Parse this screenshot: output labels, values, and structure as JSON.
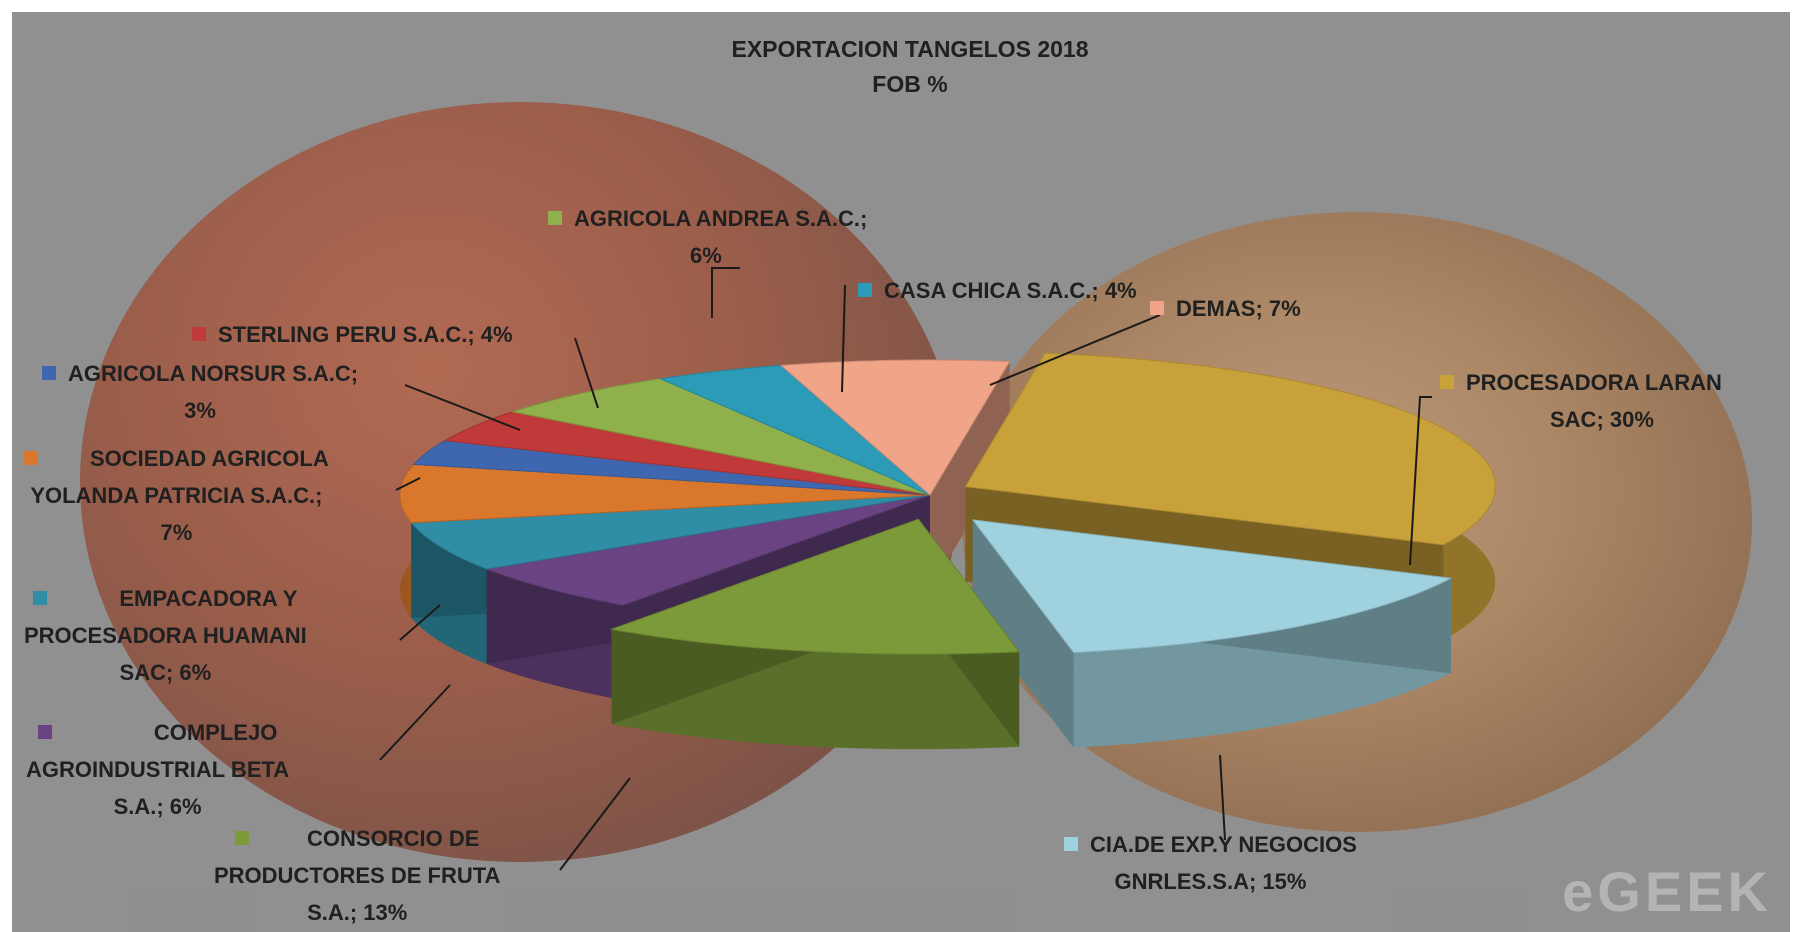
{
  "chart_data": {
    "type": "pie",
    "title": "EXPORTACION  TANGELOS 2018",
    "subtitle": "FOB %",
    "slices": [
      {
        "label": "PROCESADORA LARAN SAC",
        "value": 30,
        "value_text": "30%",
        "color": "#c9a13a"
      },
      {
        "label": "CIA.DE EXP.Y NEGOCIOS GNRLES.S.A",
        "value": 15,
        "value_text": "15%",
        "color": "#9fd2de"
      },
      {
        "label": "CONSORCIO DE PRODUCTORES DE FRUTA S.A.",
        "value": 13,
        "value_text": "13%",
        "color": "#7d9a3a"
      },
      {
        "label": "COMPLEJO AGROINDUSTRIAL BETA S.A.",
        "value": 6,
        "value_text": "6%",
        "color": "#6a4482"
      },
      {
        "label": "EMPACADORA Y PROCESADORA HUAMANI SAC",
        "value": 6,
        "value_text": "6%",
        "color": "#2f8ea6"
      },
      {
        "label": "SOCIEDAD AGRICOLA YOLANDA PATRICIA S.A.C.",
        "value": 7,
        "value_text": "7%",
        "color": "#d9772c"
      },
      {
        "label": "AGRICOLA NORSUR S.A.C",
        "value": 3,
        "value_text": "3%",
        "color": "#3f67b0"
      },
      {
        "label": "STERLING PERU S.A.C.",
        "value": 4,
        "value_text": "4%",
        "color": "#c03a3a"
      },
      {
        "label": "AGRICOLA ANDREA S.A.C.",
        "value": 6,
        "value_text": "6%",
        "color": "#8fb04a"
      },
      {
        "label": "CASA CHICA S.A.C.",
        "value": 4,
        "value_text": "4%",
        "color": "#2b9bb8"
      },
      {
        "label": "DEMAS",
        "value": 7,
        "value_text": "7%",
        "color": "#f0a488"
      }
    ],
    "labels": [
      {
        "lines": [
          "AGRICOLA ANDREA S.A.C.;",
          "6%"
        ]
      },
      {
        "lines": [
          "CASA CHICA S.A.C.; 4%"
        ]
      },
      {
        "lines": [
          "DEMAS; 7%"
        ]
      },
      {
        "lines": [
          "STERLING PERU S.A.C.; 4%"
        ]
      },
      {
        "lines": [
          "AGRICOLA NORSUR S.A.C;",
          "3%"
        ]
      },
      {
        "lines": [
          "PROCESADORA LARAN",
          "SAC; 30%"
        ]
      },
      {
        "lines": [
          "SOCIEDAD AGRICOLA",
          "YOLANDA PATRICIA S.A.C.;",
          "7%"
        ]
      },
      {
        "lines": [
          "EMPACADORA Y",
          "PROCESADORA HUAMANI",
          "SAC; 6%"
        ]
      },
      {
        "lines": [
          "COMPLEJO",
          "AGROINDUSTRIAL BETA",
          "S.A.; 6%"
        ]
      },
      {
        "lines": [
          "CONSORCIO DE",
          "PRODUCTORES DE FRUTA",
          "S.A.; 13%"
        ]
      },
      {
        "lines": [
          "CIA.DE EXP.Y NEGOCIOS",
          "GNRLES.S.A; 15%"
        ]
      }
    ],
    "legend": "none"
  },
  "watermark": "eGEEK"
}
